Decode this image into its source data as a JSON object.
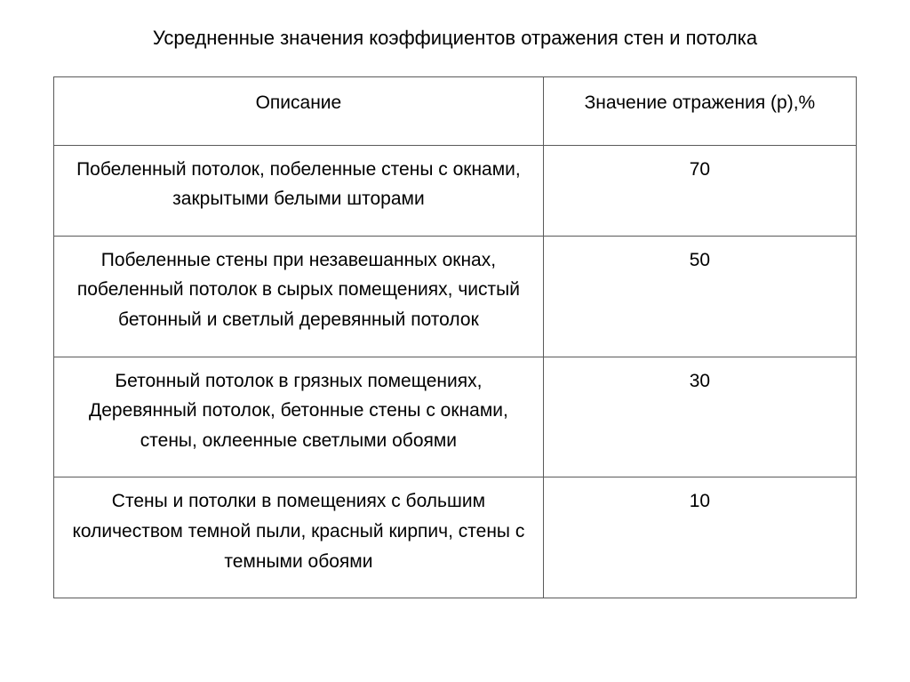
{
  "title": "Усредненные значения коэффициентов отражения стен и потолка",
  "table": {
    "headers": {
      "description": "Описание",
      "value": "Значение отражения (р),%"
    },
    "rows": [
      {
        "description": "Побеленный потолок, побеленные стены с окнами, закрытыми белыми шторами",
        "value": "70"
      },
      {
        "description": "Побеленные стены при незавешанных окнах, побеленный потолок в сырых помещениях, чистый бетонный и светлый деревянный потолок",
        "value": "50"
      },
      {
        "description": "Бетонный потолок в грязных помещениях, Деревянный потолок, бетонные стены с окнами, стены, оклеенные светлыми обоями",
        "value": "30"
      },
      {
        "description": "Стены и потолки в помещениях с большим количеством темной пыли, красный кирпич, стены с темными обоями",
        "value": "10"
      }
    ]
  },
  "styling": {
    "background_color": "#ffffff",
    "text_color": "#000000",
    "border_color": "#5a5a5a",
    "title_fontsize": 22,
    "cell_fontsize": 21,
    "font_family": "Arial",
    "column_widths_pct": [
      61,
      39
    ],
    "line_height": 1.6
  }
}
